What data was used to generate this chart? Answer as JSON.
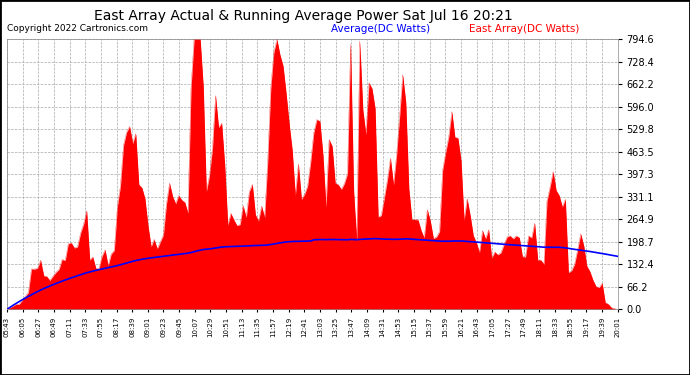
{
  "title": "East Array Actual & Running Average Power Sat Jul 16 20:21",
  "copyright": "Copyright 2022 Cartronics.com",
  "legend_avg": "Average(DC Watts)",
  "legend_east": "East Array(DC Watts)",
  "legend_avg_color": "blue",
  "legend_east_color": "red",
  "ylim": [
    0.0,
    794.6
  ],
  "yticks": [
    0.0,
    66.2,
    132.4,
    198.7,
    264.9,
    331.1,
    397.3,
    463.5,
    529.8,
    596.0,
    662.2,
    728.4,
    794.6
  ],
  "bg_color": "#ffffff",
  "plot_bg_color": "#ffffff",
  "grid_color": "#aaaaaa",
  "bar_color": "red",
  "avg_line_color": "blue",
  "time_labels": [
    "05:43",
    "06:05",
    "06:27",
    "06:49",
    "07:11",
    "07:33",
    "07:55",
    "08:17",
    "08:39",
    "09:01",
    "09:23",
    "09:45",
    "10:07",
    "10:29",
    "10:51",
    "11:13",
    "11:35",
    "11:57",
    "12:19",
    "12:41",
    "13:03",
    "13:25",
    "13:47",
    "14:09",
    "14:31",
    "14:53",
    "15:15",
    "15:37",
    "15:59",
    "16:21",
    "16:43",
    "17:05",
    "17:27",
    "17:49",
    "18:11",
    "18:33",
    "18:55",
    "19:17",
    "19:39",
    "20:01"
  ]
}
